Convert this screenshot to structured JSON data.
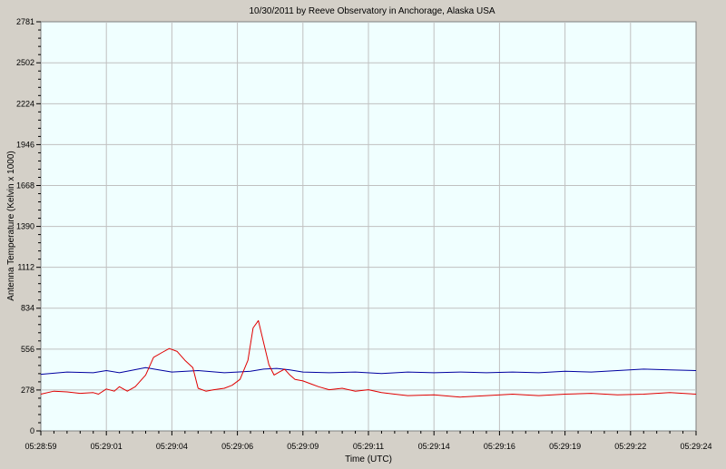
{
  "chart_data": {
    "type": "line",
    "title": "10/30/2011  by  Reeve Observatory  in  Anchorage, Alaska  USA",
    "xlabel": "Time (UTC)",
    "ylabel": "Antenna Temperature (Kelvin x 1000)",
    "ylim": [
      0,
      2781
    ],
    "yticks": [
      0,
      278,
      556,
      834,
      1112,
      1390,
      1668,
      1946,
      2224,
      2502,
      2781
    ],
    "ytick_labels": [
      "0",
      "278",
      "556",
      "834",
      "1112",
      "1390",
      "1668",
      "1946",
      "2224",
      "2502",
      "2781"
    ],
    "xlim": [
      0,
      25
    ],
    "xticks": [
      0,
      2.5,
      5,
      7.5,
      10,
      12.5,
      15,
      17.5,
      20,
      22.5,
      25
    ],
    "xtick_labels": [
      "05:28:59",
      "05:29:01",
      "05:29:04",
      "05:29:06",
      "05:29:09",
      "05:29:11",
      "05:29:14",
      "05:29:16",
      "05:29:19",
      "05:29:22",
      "05:29:24"
    ],
    "grid": true,
    "colors": {
      "plot_background": "#f0ffff",
      "grid": "#c0c0c0",
      "window_background": "#d4d0c8"
    },
    "series": [
      {
        "color": "#0000a0",
        "x": [
          0,
          1,
          2,
          2.5,
          3,
          4,
          4.5,
          5,
          6,
          7,
          7.5,
          8,
          8.5,
          9,
          9.5,
          10,
          11,
          12,
          13,
          14,
          15,
          16,
          17,
          18,
          19,
          20,
          21,
          22,
          23,
          24,
          25
        ],
        "y": [
          385,
          400,
          395,
          410,
          395,
          430,
          415,
          400,
          410,
          395,
          400,
          405,
          420,
          425,
          415,
          400,
          395,
          400,
          390,
          400,
          395,
          400,
          395,
          400,
          395,
          405,
          400,
          410,
          420,
          415,
          410
        ]
      },
      {
        "color": "#e00000",
        "x": [
          0,
          0.5,
          1,
          1.5,
          2,
          2.2,
          2.5,
          2.8,
          3,
          3.3,
          3.6,
          4,
          4.3,
          4.6,
          4.9,
          5.2,
          5.5,
          5.8,
          6,
          6.3,
          6.6,
          7,
          7.3,
          7.6,
          7.9,
          8.1,
          8.3,
          8.5,
          8.7,
          8.9,
          9.1,
          9.3,
          9.5,
          9.7,
          10,
          10.3,
          10.6,
          11,
          11.5,
          12,
          12.5,
          13,
          13.5,
          14,
          15,
          16,
          17,
          18,
          19,
          20,
          21,
          22,
          23,
          24,
          25
        ],
        "y": [
          250,
          270,
          265,
          255,
          260,
          250,
          285,
          270,
          300,
          270,
          300,
          380,
          500,
          530,
          560,
          540,
          480,
          430,
          290,
          270,
          280,
          290,
          310,
          350,
          480,
          700,
          750,
          600,
          450,
          380,
          400,
          420,
          380,
          350,
          340,
          320,
          300,
          280,
          290,
          270,
          280,
          260,
          250,
          240,
          245,
          230,
          240,
          250,
          240,
          250,
          255,
          245,
          250,
          260,
          250
        ]
      }
    ]
  }
}
